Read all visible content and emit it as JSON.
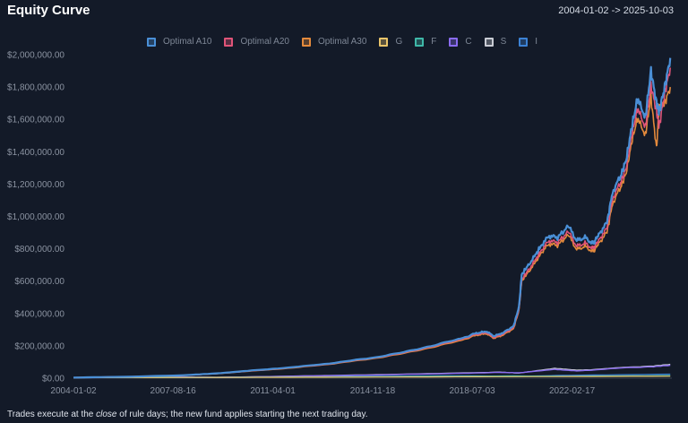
{
  "header": {
    "title": "Equity Curve",
    "date_range": "2004-01-02 -> 2025-10-03"
  },
  "footer": {
    "note_prefix": "Trades execute at the ",
    "note_emph": "close",
    "note_suffix": " of rule days; the new fund applies starting the next trading day."
  },
  "chart_data": {
    "type": "line",
    "title": "Equity Curve",
    "xlabel": "",
    "ylabel": "",
    "xlim": [
      2004.0,
      2025.76
    ],
    "ylim": [
      0,
      2000000
    ],
    "grid": false,
    "legend_position": "top-center",
    "y_ticks": [
      {
        "value": 0,
        "label": "$0.00"
      },
      {
        "value": 200000,
        "label": "$200,000.00"
      },
      {
        "value": 400000,
        "label": "$400,000.00"
      },
      {
        "value": 600000,
        "label": "$600,000.00"
      },
      {
        "value": 800000,
        "label": "$800,000.00"
      },
      {
        "value": 1000000,
        "label": "$1,000,000.00"
      },
      {
        "value": 1200000,
        "label": "$1,200,000.00"
      },
      {
        "value": 1400000,
        "label": "$1,400,000.00"
      },
      {
        "value": 1600000,
        "label": "$1,600,000.00"
      },
      {
        "value": 1800000,
        "label": "$1,800,000.00"
      },
      {
        "value": 2000000,
        "label": "$2,000,000.00"
      }
    ],
    "x_ticks": [
      {
        "value": 2004.0,
        "label": "2004-01-02"
      },
      {
        "value": 2007.62,
        "label": "2007-08-16"
      },
      {
        "value": 2011.25,
        "label": "2011-04-01"
      },
      {
        "value": 2014.88,
        "label": "2014-11-18"
      },
      {
        "value": 2018.5,
        "label": "2018-07-03"
      },
      {
        "value": 2022.13,
        "label": "2022-02-17"
      }
    ],
    "series": [
      {
        "name": "Optimal A10",
        "color": "#4a8fd6",
        "width": 2.2,
        "x": [
          2004.0,
          2006.0,
          2008.0,
          2009.2,
          2010.5,
          2012.0,
          2013.5,
          2015.0,
          2016.0,
          2017.0,
          2018.0,
          2018.6,
          2019.0,
          2019.3,
          2019.6,
          2020.0,
          2020.2,
          2020.3,
          2020.5,
          2020.8,
          2021.0,
          2021.3,
          2021.6,
          2022.0,
          2022.3,
          2022.6,
          2022.9,
          2023.1,
          2023.4,
          2023.6,
          2023.9,
          2024.1,
          2024.3,
          2024.5,
          2024.8,
          2025.0,
          2025.2,
          2025.3,
          2025.5,
          2025.7
        ],
        "y": [
          4000,
          9000,
          18000,
          30000,
          48000,
          68000,
          95000,
          130000,
          160000,
          200000,
          240000,
          275000,
          290000,
          260000,
          280000,
          320000,
          440000,
          640000,
          690000,
          760000,
          820000,
          880000,
          870000,
          940000,
          850000,
          870000,
          830000,
          890000,
          960000,
          1150000,
          1250000,
          1350000,
          1550000,
          1720000,
          1620000,
          1900000,
          1700000,
          1650000,
          1800000,
          1980000
        ]
      },
      {
        "name": "Optimal A20",
        "color": "#e05478",
        "width": 1.6,
        "x": [
          2004.0,
          2006.0,
          2008.0,
          2009.2,
          2010.5,
          2012.0,
          2013.5,
          2015.0,
          2016.0,
          2017.0,
          2018.0,
          2018.6,
          2019.0,
          2019.3,
          2019.6,
          2020.0,
          2020.2,
          2020.3,
          2020.5,
          2020.8,
          2021.0,
          2021.3,
          2021.6,
          2022.0,
          2022.3,
          2022.6,
          2022.9,
          2023.1,
          2023.4,
          2023.6,
          2023.9,
          2024.1,
          2024.3,
          2024.5,
          2024.8,
          2025.0,
          2025.2,
          2025.3,
          2025.5,
          2025.7
        ],
        "y": [
          4000,
          9000,
          17500,
          29000,
          46000,
          66000,
          92000,
          127000,
          156000,
          195000,
          234000,
          268000,
          282000,
          252000,
          272000,
          311000,
          425000,
          610000,
          660000,
          730000,
          790000,
          850000,
          840000,
          905000,
          815000,
          835000,
          800000,
          855000,
          925000,
          1110000,
          1210000,
          1300000,
          1500000,
          1660000,
          1560000,
          1810000,
          1650000,
          1560000,
          1760000,
          1920000
        ]
      },
      {
        "name": "Optimal A30",
        "color": "#e48a3c",
        "width": 1.6,
        "x": [
          2004.0,
          2006.0,
          2008.0,
          2009.2,
          2010.5,
          2012.0,
          2013.5,
          2015.0,
          2016.0,
          2017.0,
          2018.0,
          2018.6,
          2019.0,
          2019.3,
          2019.6,
          2020.0,
          2020.2,
          2020.3,
          2020.5,
          2020.8,
          2021.0,
          2021.3,
          2021.6,
          2022.0,
          2022.3,
          2022.6,
          2022.9,
          2023.1,
          2023.4,
          2023.6,
          2023.9,
          2024.1,
          2024.3,
          2024.5,
          2024.8,
          2025.0,
          2025.2,
          2025.3,
          2025.5,
          2025.7
        ],
        "y": [
          4000,
          8800,
          17000,
          28000,
          45000,
          64000,
          90000,
          124000,
          152000,
          190000,
          228000,
          262000,
          276000,
          246000,
          266000,
          304000,
          418000,
          600000,
          648000,
          715000,
          775000,
          830000,
          822000,
          885000,
          795000,
          815000,
          780000,
          835000,
          900000,
          1080000,
          1180000,
          1270000,
          1460000,
          1600000,
          1510000,
          1740000,
          1420000,
          1680000,
          1700000,
          1800000
        ]
      },
      {
        "name": "G",
        "color": "#e9c46a",
        "width": 1.2,
        "x": [
          2004.0,
          2010.0,
          2015.0,
          2020.0,
          2025.7
        ],
        "y": [
          3000,
          5000,
          7000,
          9500,
          12000
        ]
      },
      {
        "name": "F",
        "color": "#3fb8a8",
        "width": 1.2,
        "x": [
          2004.0,
          2010.0,
          2015.0,
          2020.0,
          2022.0,
          2025.7
        ],
        "y": [
          3000,
          6000,
          9000,
          14000,
          12000,
          16000
        ]
      },
      {
        "name": "C",
        "color": "#8a6cf0",
        "width": 1.4,
        "x": [
          2004.0,
          2008.0,
          2009.2,
          2012.0,
          2015.0,
          2018.0,
          2019.5,
          2020.2,
          2021.5,
          2022.3,
          2022.9,
          2024.0,
          2025.0,
          2025.7
        ],
        "y": [
          3000,
          7000,
          5000,
          12000,
          20000,
          30000,
          36000,
          33000,
          55000,
          45000,
          50000,
          65000,
          70000,
          80000
        ]
      },
      {
        "name": "S",
        "color": "#c9ccd4",
        "width": 1.2,
        "x": [
          2004.0,
          2008.0,
          2009.2,
          2012.0,
          2015.0,
          2018.0,
          2019.5,
          2020.2,
          2021.5,
          2022.3,
          2022.9,
          2024.0,
          2025.0,
          2025.7
        ],
        "y": [
          3000,
          7500,
          5000,
          13000,
          22000,
          32000,
          38000,
          31000,
          62000,
          50000,
          53000,
          68000,
          74000,
          86000
        ]
      },
      {
        "name": "I",
        "color": "#3c82d4",
        "width": 1.2,
        "x": [
          2004.0,
          2008.0,
          2009.2,
          2012.0,
          2015.0,
          2018.0,
          2020.2,
          2022.0,
          2025.7
        ],
        "y": [
          3000,
          6000,
          3500,
          8000,
          12000,
          15000,
          12000,
          18000,
          25000
        ]
      }
    ]
  }
}
